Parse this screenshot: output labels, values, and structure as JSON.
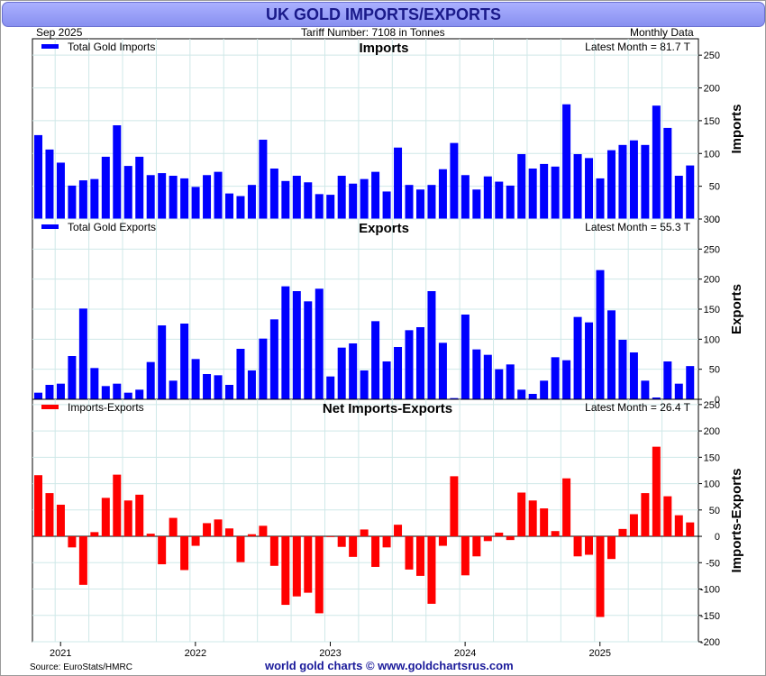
{
  "header": {
    "title": "UK GOLD IMPORTS/EXPORTS",
    "date": "Sep  2025",
    "tariff": "Tariff Number: 7108 in Tonnes",
    "frequency": "Monthly Data"
  },
  "footer": {
    "source": "Source: EuroStats/HMRC",
    "credit": "world gold charts © www.goldchartsrus.com"
  },
  "colors": {
    "imports": "#0000ff",
    "exports": "#0000ff",
    "net": "#ff0000",
    "banner": "#8890f0",
    "grid": "#cfe8e8"
  },
  "chart_data": [
    {
      "type": "bar",
      "title": "Imports",
      "legend": "Total Gold Imports",
      "latest": "Latest Month = 81.7 T",
      "ylabel": "Imports",
      "ylim": [
        0,
        275
      ],
      "yticks": [
        0,
        50,
        100,
        150,
        200,
        250
      ],
      "x_start": "2020-11",
      "x_ticks": [
        "2021",
        "2022",
        "2023",
        "2024",
        "2025"
      ],
      "values": [
        128,
        106,
        86,
        51,
        59,
        61,
        95,
        143,
        81,
        95,
        67,
        70,
        66,
        62,
        49,
        67,
        72,
        39,
        35,
        52,
        121,
        77,
        58,
        66,
        56,
        38,
        37,
        66,
        54,
        61,
        72,
        42,
        109,
        52,
        45,
        52,
        76,
        116,
        67,
        45,
        65,
        57,
        51,
        99,
        77,
        84,
        80,
        175,
        99,
        93,
        62,
        105,
        113,
        120,
        113,
        173,
        139,
        66,
        81.7
      ]
    },
    {
      "type": "bar",
      "title": "Exports",
      "legend": "Total Gold Exports",
      "latest": "Latest Month = 55.3 T",
      "ylabel": "Exports",
      "ylim": [
        0,
        300
      ],
      "yticks": [
        0,
        50,
        100,
        150,
        200,
        250,
        300
      ],
      "x_start": "2020-11",
      "values": [
        11,
        24,
        26,
        72,
        151,
        52,
        22,
        26,
        11,
        16,
        62,
        123,
        31,
        126,
        67,
        42,
        40,
        24,
        84,
        48,
        101,
        133,
        188,
        180,
        163,
        184,
        38,
        86,
        93,
        48,
        130,
        63,
        87,
        115,
        120,
        180,
        94,
        2,
        141,
        83,
        74,
        50,
        58,
        16,
        9,
        31,
        70,
        65,
        137,
        128,
        215,
        148,
        99,
        78,
        31,
        3,
        63,
        26,
        55.3
      ]
    },
    {
      "type": "bar",
      "title": "Net Imports-Exports",
      "legend": "Imports-Exports",
      "latest": "Latest Month = 26.4 T",
      "ylabel": "Imports-Exports",
      "ylim": [
        -200,
        260
      ],
      "yticks": [
        -200,
        -150,
        -100,
        -50,
        0,
        50,
        100,
        150,
        200,
        250
      ],
      "x_start": "2020-11",
      "values": [
        116,
        82,
        60,
        -21,
        -92,
        8,
        73,
        117,
        68,
        79,
        5,
        -53,
        35,
        -64,
        -18,
        25,
        32,
        15,
        -49,
        4,
        20,
        -56,
        -130,
        -114,
        -107,
        -146,
        -1,
        -20,
        -39,
        13,
        -58,
        -21,
        22,
        -63,
        -75,
        -128,
        -18,
        114,
        -74,
        -38,
        -9,
        7,
        -7,
        83,
        68,
        53,
        10,
        110,
        -38,
        -35,
        -153,
        -43,
        14,
        42,
        82,
        170,
        76,
        40,
        26.4
      ]
    }
  ]
}
